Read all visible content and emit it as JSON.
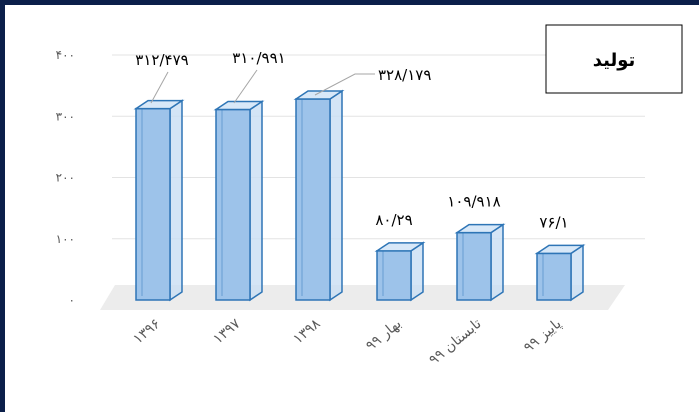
{
  "chart_data": {
    "type": "bar",
    "title": "تولید",
    "categories": [
      "۱۳۹۶",
      "۱۳۹۷",
      "۱۳۹۸",
      "بهار ۹۹",
      "تابستان ۹۹",
      "پاییز ۹۹"
    ],
    "values": [
      312.479,
      310.991,
      328.179,
      80.29,
      109.918,
      76.1
    ],
    "data_labels": [
      "۳۱۲/۴۷۹",
      "۳۱۰/۹۹۱",
      "۳۲۸/۱۷۹",
      "۸۰/۲۹",
      "۱۰۹/۹۱۸",
      "۷۶/۱"
    ],
    "y_ticks": [
      "۰",
      "۱۰۰",
      "۲۰۰",
      "۳۰۰",
      "۴۰۰"
    ],
    "ylim": [
      0,
      400
    ],
    "grid": true,
    "legend": "none",
    "bar_color": "#9dc3ea",
    "bar_edge_color": "#2e75b6",
    "frame_color": "#0b1f4a"
  }
}
